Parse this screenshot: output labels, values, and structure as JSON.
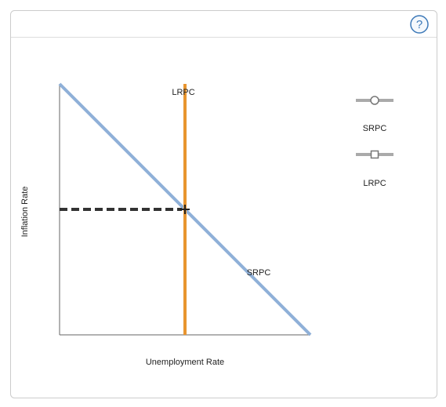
{
  "header": {
    "help": "?"
  },
  "graph": {
    "x_axis_label": "Unemployment Rate",
    "y_axis_label": "Inflation Rate",
    "curve_labels": [
      {
        "label": "LRPC"
      },
      {
        "label": "SRPC"
      }
    ]
  },
  "tools": {
    "items": [
      {
        "label": "SRPC"
      },
      {
        "label": "LRPC"
      }
    ]
  }
}
